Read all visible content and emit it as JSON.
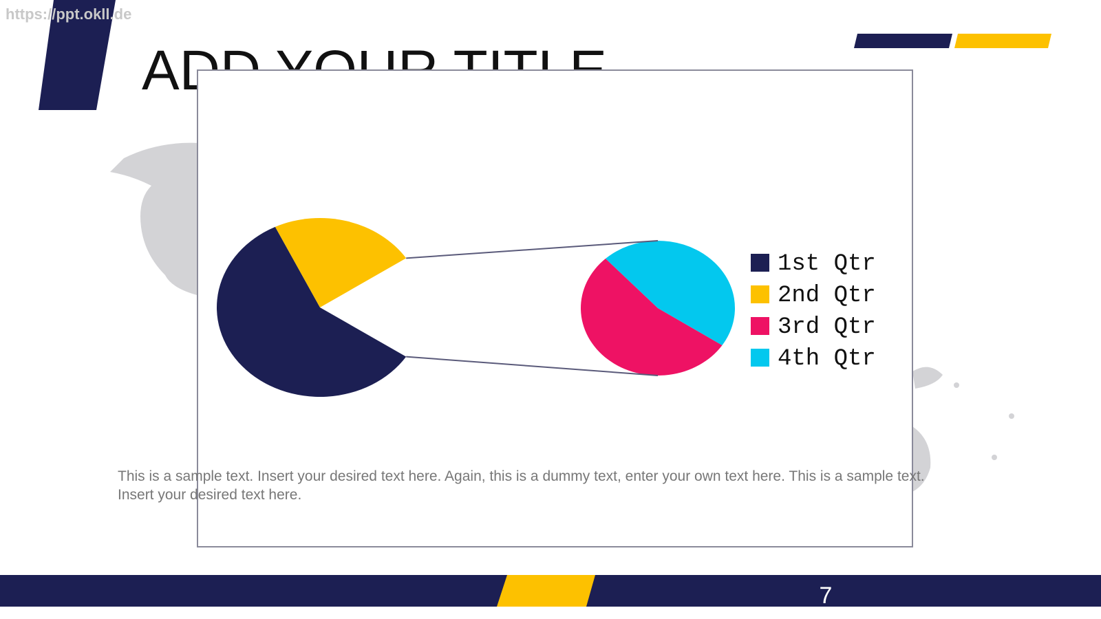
{
  "watermark": "https://ppt.okll.de",
  "header": {
    "title": "ADD YOUR TITLE"
  },
  "chart_data": {
    "type": "pie-of-pie",
    "categories": [
      "1st Qtr",
      "2nd Qtr",
      "3rd Qtr",
      "4th Qtr"
    ],
    "values": [
      8.2,
      3.2,
      1.4,
      1.2
    ],
    "colors": [
      "#1c1f53",
      "#fdc100",
      "#ee1264",
      "#03c8ee"
    ],
    "split_last": 2,
    "legend": "right"
  },
  "body": {
    "text": "This is a sample text. Insert your desired text here. Again, this is a dummy text, enter your own text here. This is a sample text. Insert your desired text here."
  },
  "footer": {
    "page_number": "7"
  }
}
